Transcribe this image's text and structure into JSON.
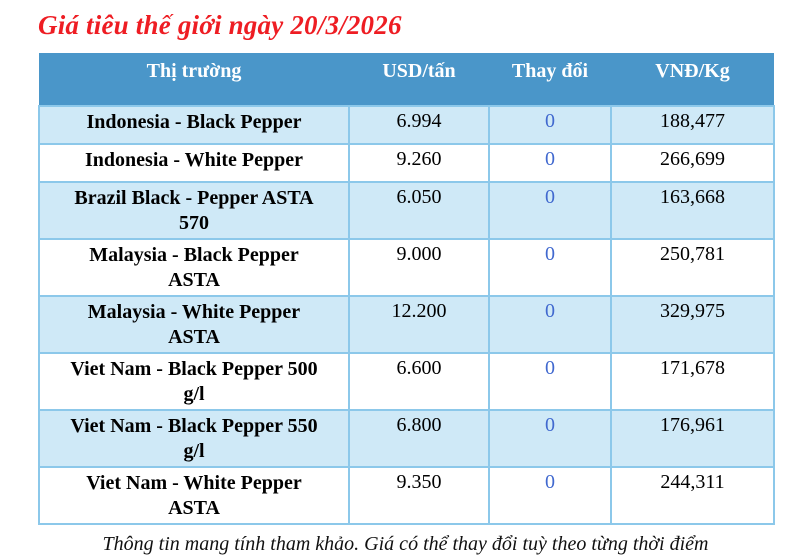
{
  "title": "Giá tiêu thế giới ngày 20/3/2026",
  "table": {
    "headers": [
      "Thị trường",
      "USD/tấn",
      "Thay đổi",
      "VNĐ/Kg"
    ],
    "rows": [
      {
        "market": "Indonesia - Black Pepper",
        "usd": "6.994",
        "change": "0",
        "vnd": "188,477"
      },
      {
        "market": "Indonesia - White Pepper",
        "usd": "9.260",
        "change": "0",
        "vnd": "266,699"
      },
      {
        "market": "Brazil Black - Pepper ASTA\n570",
        "usd": "6.050",
        "change": "0",
        "vnd": "163,668"
      },
      {
        "market": "Malaysia - Black Pepper\nASTA",
        "usd": "9.000",
        "change": "0",
        "vnd": "250,781"
      },
      {
        "market": "Malaysia - White Pepper\nASTA",
        "usd": "12.200",
        "change": "0",
        "vnd": "329,975"
      },
      {
        "market": "Viet Nam - Black Pepper 500\ng/l",
        "usd": "6.600",
        "change": "0",
        "vnd": "171,678"
      },
      {
        "market": "Viet Nam - Black Pepper 550\ng/l",
        "usd": "6.800",
        "change": "0",
        "vnd": "176,961"
      },
      {
        "market": "Viet Nam - White Pepper\nASTA",
        "usd": "9.350",
        "change": "0",
        "vnd": "244,311"
      }
    ]
  },
  "footer_note": "Thông tin mang tính tham khảo. Giá có thể thay đổi tuỳ theo từng thời điểm",
  "colors": {
    "title_red": "#ee1d23",
    "header_blue": "#4a96c9",
    "row_alt_blue": "#cfe9f7",
    "border_blue": "#8cc8ea",
    "change_value_blue": "#4169cf"
  }
}
